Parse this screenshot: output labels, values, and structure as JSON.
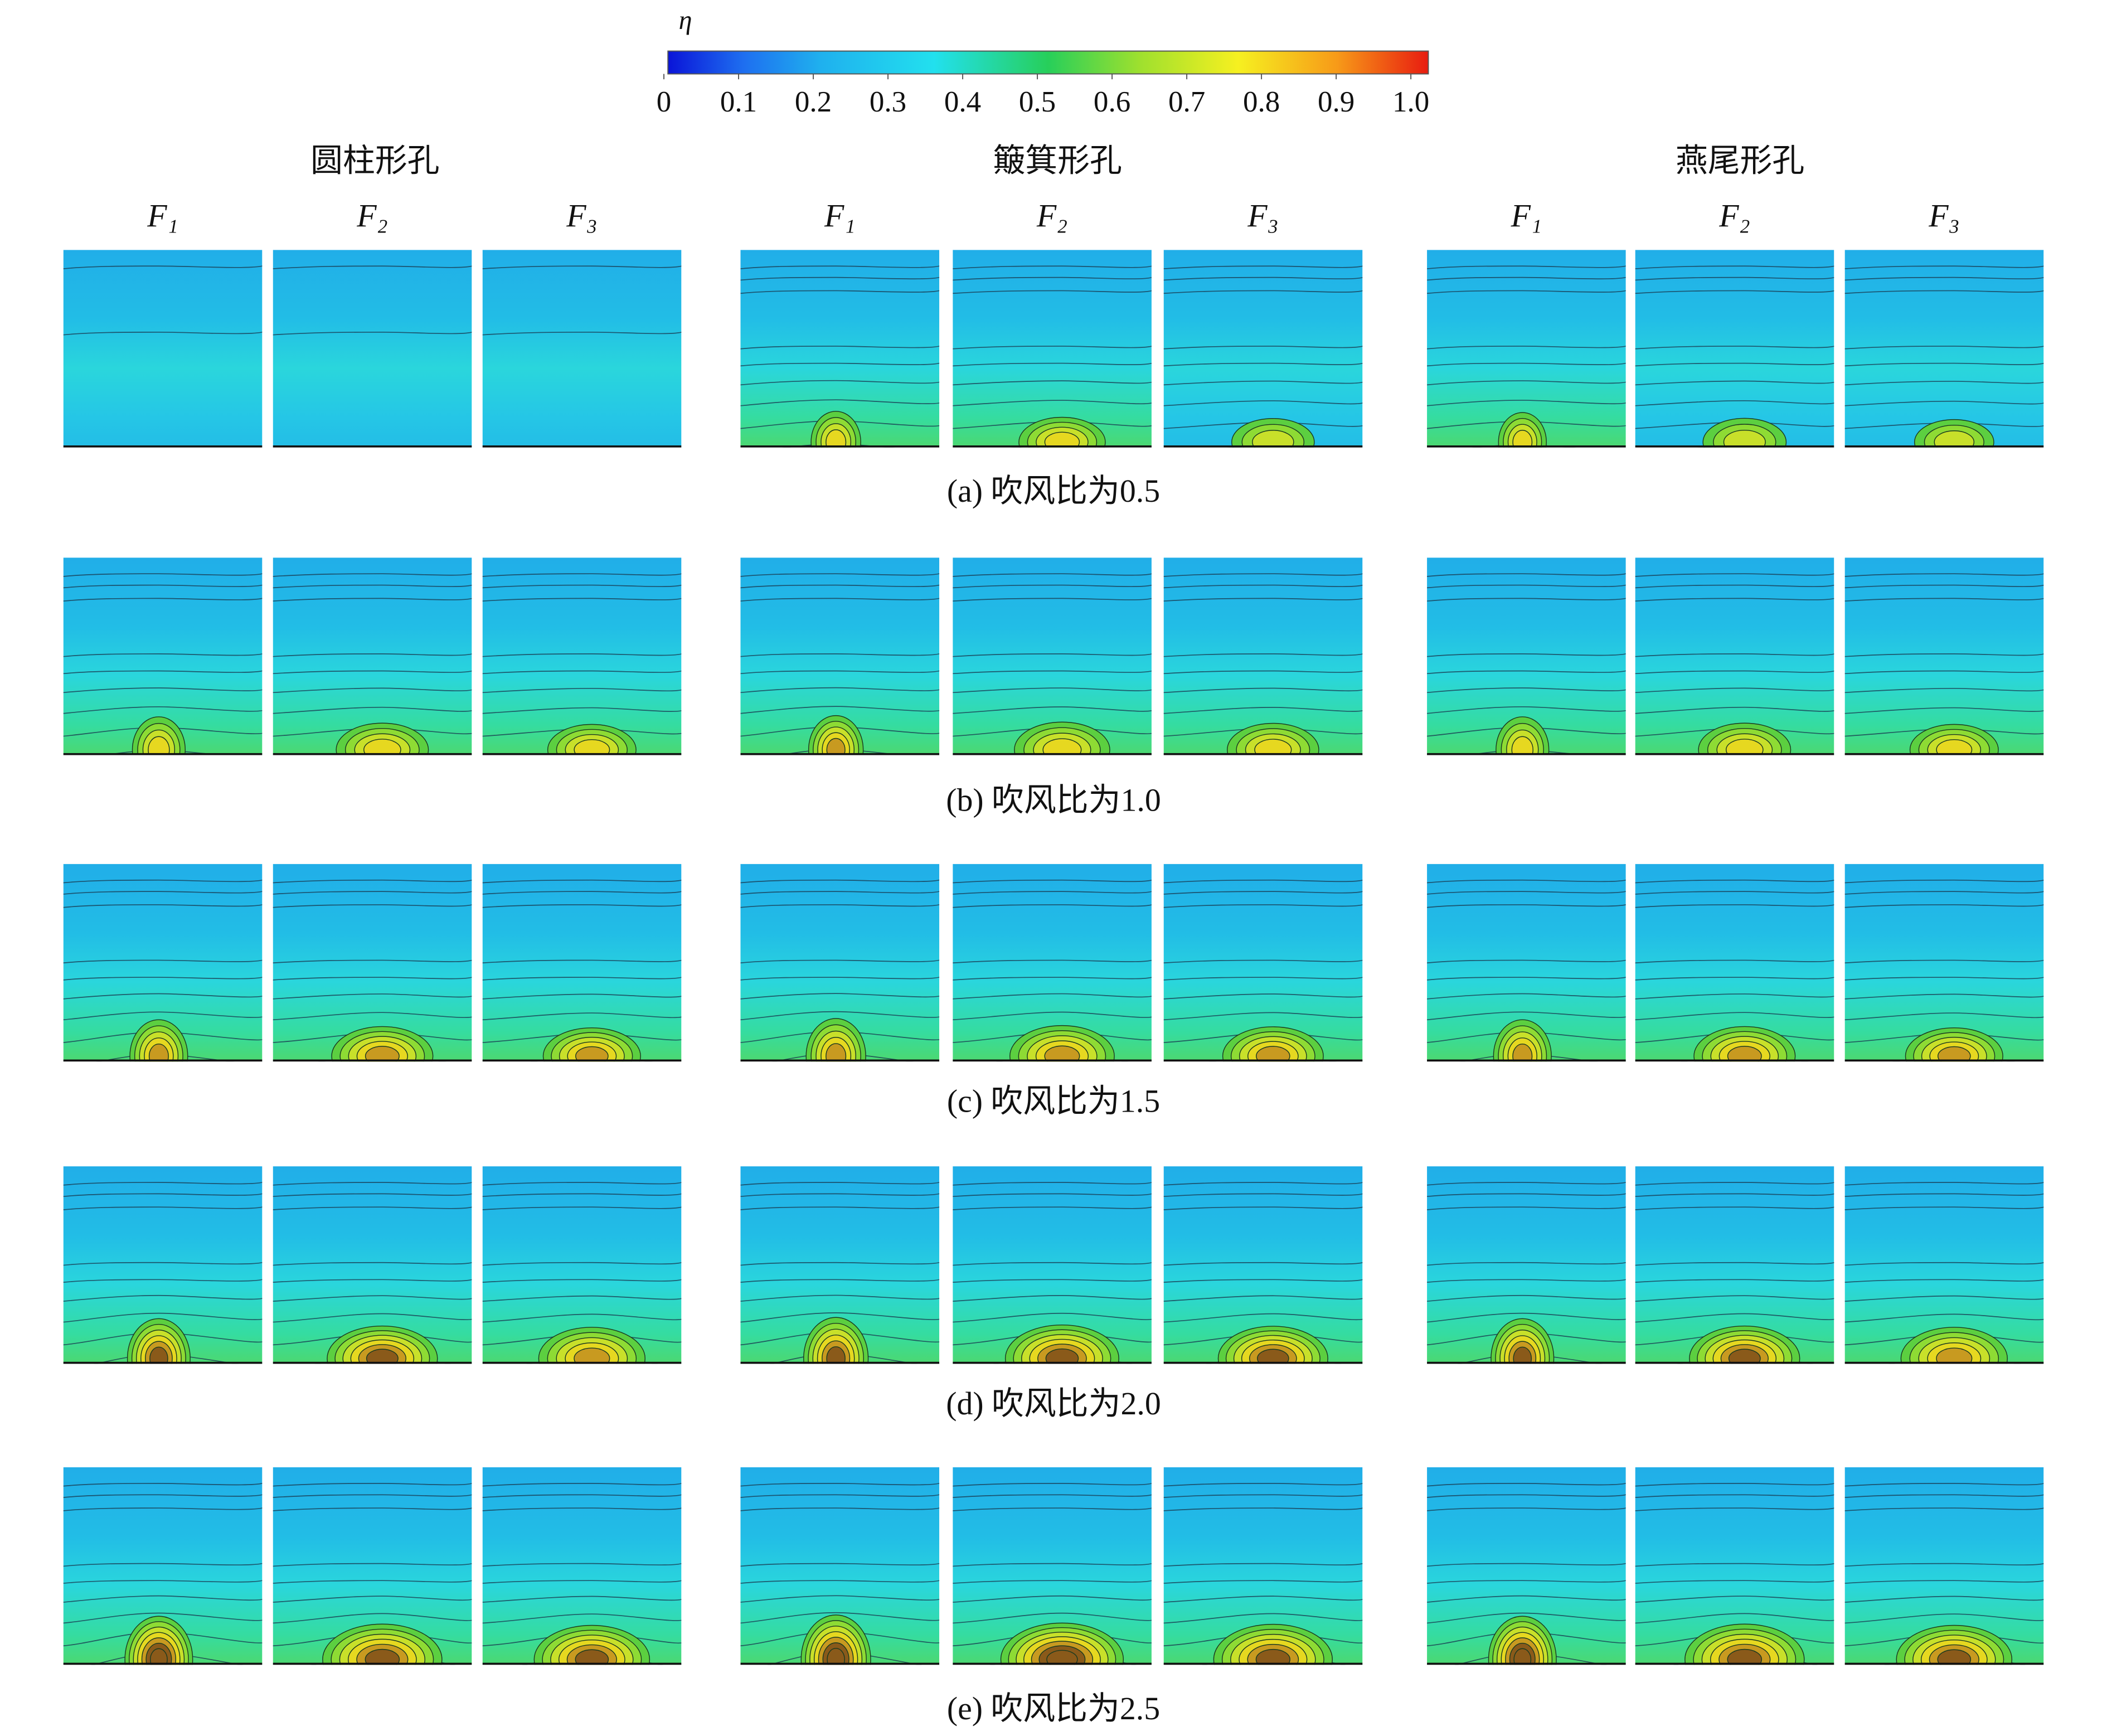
{
  "colorbar": {
    "label": "η",
    "ticks": [
      0,
      0.1,
      0.2,
      0.3,
      0.4,
      0.5,
      0.6,
      0.7,
      0.8,
      0.9,
      {
        "value": 1,
        "label": "1.0"
      }
    ]
  },
  "groups": [
    {
      "title": "圆柱形孔",
      "columns": [
        "F₁",
        "F₂",
        "F₃"
      ]
    },
    {
      "title": "簸箕形孔",
      "columns": [
        "F₁",
        "F₂",
        "F₃"
      ]
    },
    {
      "title": "燕尾形孔",
      "columns": [
        "F₁",
        "F₂",
        "F₃"
      ]
    }
  ],
  "rows": [
    {
      "caption": "(a) 吹风比为0.5"
    },
    {
      "caption": "(b) 吹风比为1.0"
    },
    {
      "caption": "(c) 吹风比为1.5"
    },
    {
      "caption": "(d) 吹风比为2.0"
    },
    {
      "caption": "(e) 吹风比为2.5"
    }
  ]
}
